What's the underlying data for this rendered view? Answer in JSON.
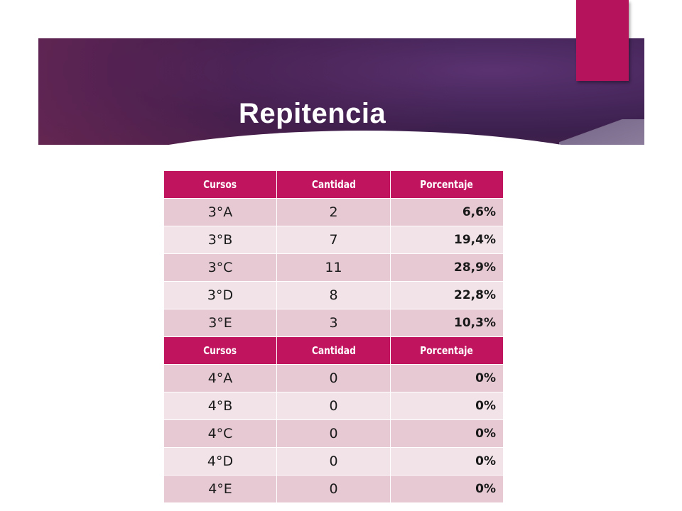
{
  "title": "Repitencia",
  "colors": {
    "banner": "#47275c",
    "accent": "#b5145c",
    "header": "#c0145f",
    "row_odd": "#e6c9d3",
    "row_even": "#f1e3e8"
  },
  "table": {
    "headers": [
      "Cursos",
      "Cantidad",
      "Porcentaje"
    ],
    "group1": [
      [
        "3°A",
        "2",
        "6,6%"
      ],
      [
        "3°B",
        "7",
        "19,4%"
      ],
      [
        "3°C",
        "11",
        "28,9%"
      ],
      [
        "3°D",
        "8",
        "22,8%"
      ],
      [
        "3°E",
        "3",
        "10,3%"
      ]
    ],
    "group2": [
      [
        "4°A",
        "0",
        "0%"
      ],
      [
        "4°B",
        "0",
        "0%"
      ],
      [
        "4°C",
        "0",
        "0%"
      ],
      [
        "4°D",
        "0",
        "0%"
      ],
      [
        "4°E",
        "0",
        "0%"
      ]
    ]
  }
}
